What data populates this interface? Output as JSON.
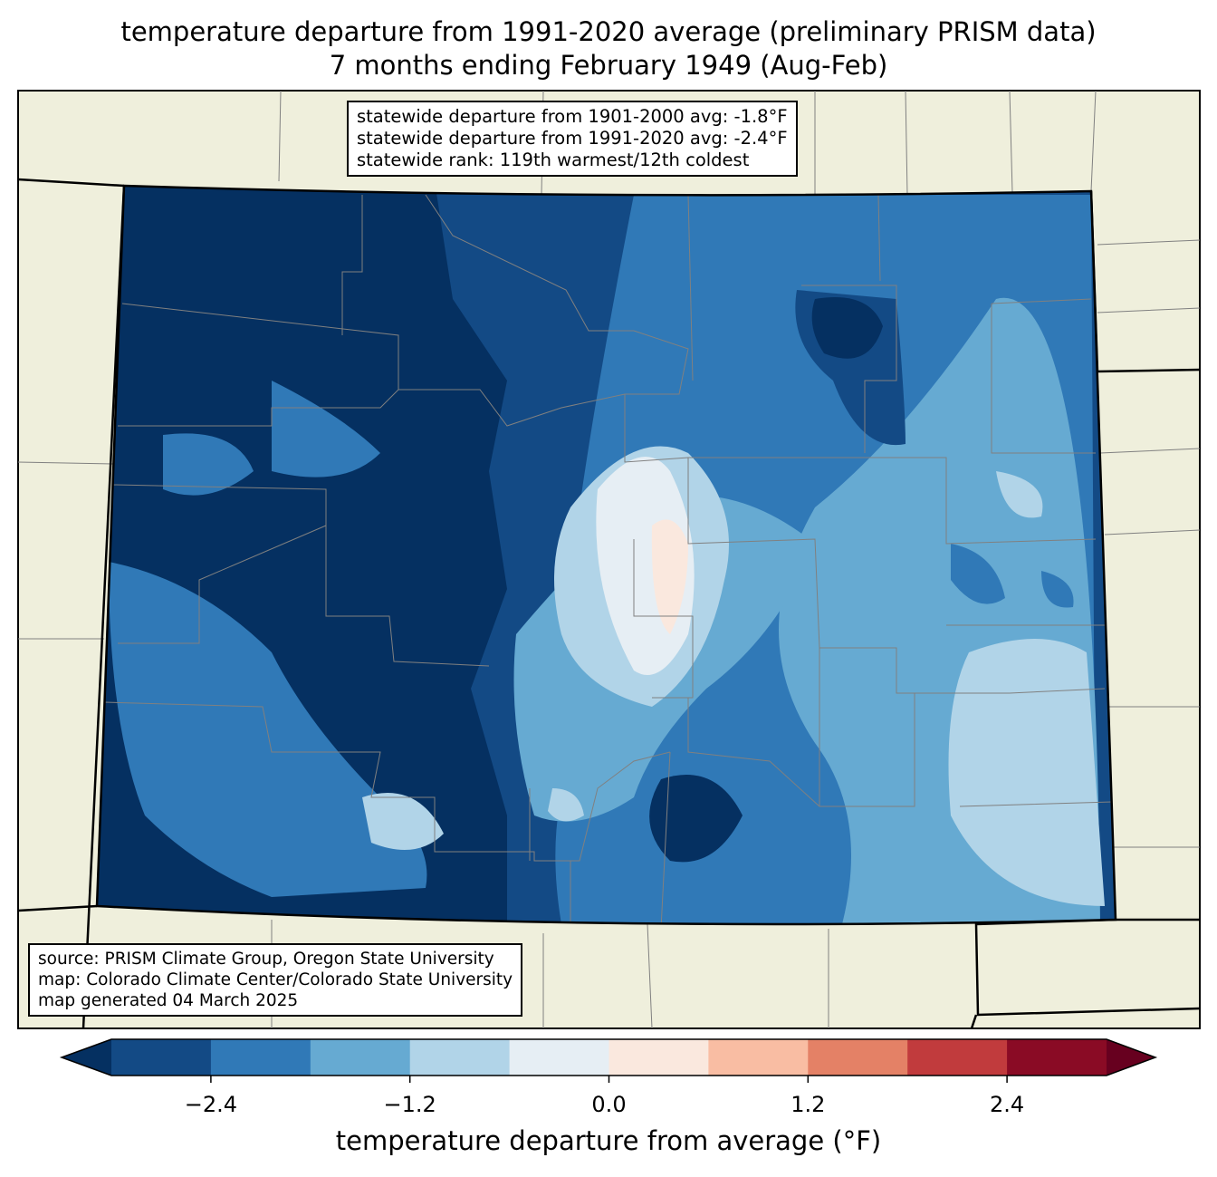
{
  "title": {
    "line1": "temperature departure from 1991-2020 average (preliminary PRISM data)",
    "line2": "7 months ending February 1949 (Aug-Feb)"
  },
  "stats_box": {
    "line1": "statewide departure from 1901-2000 avg: -1.8°F",
    "line2": "statewide departure from 1991-2020 avg: -2.4°F",
    "line3": "statewide rank: 119th warmest/12th coldest"
  },
  "source_box": {
    "line1": "source: PRISM Climate Group, Oregon State University",
    "line2": "map: Colorado Climate Center/Colorado State University",
    "line3": "map generated 04 March 2025"
  },
  "colorbar": {
    "label": "temperature departure from average (°F)",
    "bounds": [
      -3.0,
      3.0
    ],
    "step": 0.6,
    "ticks": [
      "−2.4",
      "−1.2",
      "0.0",
      "1.2",
      "2.4"
    ],
    "tick_values": [
      -2.4,
      -1.2,
      0.0,
      1.2,
      2.4
    ],
    "under_color": "#053061",
    "over_color": "#67001f",
    "colors": [
      "#134a85",
      "#3079b7",
      "#66aad2",
      "#b1d4e8",
      "#e6eef4",
      "#fae8de",
      "#f9bda3",
      "#e48166",
      "#c13b3d",
      "#8a0b25"
    ]
  },
  "map_colors": {
    "background": "#efefdc",
    "county_lines": "#808080"
  }
}
